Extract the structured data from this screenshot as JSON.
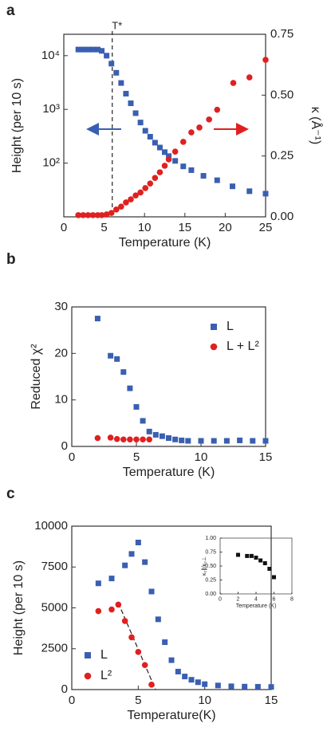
{
  "chart_data": [
    {
      "type": "scatter",
      "panel_label": "a",
      "xlabel": "Temperature (K)",
      "ylabel": "Height (per 10 s)",
      "y2label": "κ (Å⁻¹)",
      "xlim": [
        0,
        25
      ],
      "xticks": [
        0,
        5,
        10,
        15,
        20,
        25
      ],
      "ylim": [
        10,
        25000
      ],
      "ylog": true,
      "yticks": [
        {
          "value": 100,
          "label": "10²"
        },
        {
          "value": 1000,
          "label": "10³"
        },
        {
          "value": 10000,
          "label": "10⁴"
        }
      ],
      "y2lim": [
        0,
        0.75
      ],
      "y2ticks": [
        {
          "value": 0,
          "label": "0.00"
        },
        {
          "value": 0.25,
          "label": "0.25"
        },
        {
          "value": 0.5,
          "label": "0.50"
        },
        {
          "value": 0.75,
          "label": "0.75"
        }
      ],
      "annotations": [
        {
          "text": "T*",
          "x": 6
        }
      ],
      "series": [
        {
          "color": "#3a5fb0",
          "marker": "square",
          "x": [
            1.8,
            2.4,
            3.0,
            3.6,
            4.2,
            4.7,
            5.3,
            5.9,
            6.5,
            7.1,
            7.7,
            8.3,
            8.9,
            9.5,
            10.1,
            10.7,
            11.3,
            11.9,
            12.5,
            13.0,
            13.8,
            14.8,
            15.8,
            17.3,
            19.0,
            20.9,
            23.0,
            25.0
          ],
          "values": [
            13000,
            13000,
            13000,
            13000,
            13000,
            12300,
            10000,
            7100,
            4800,
            3100,
            1960,
            1300,
            850,
            570,
            400,
            310,
            240,
            195,
            160,
            135,
            110,
            87,
            74,
            58,
            48,
            37,
            30,
            27
          ]
        },
        {
          "color": "#e02020",
          "marker": "circle",
          "axis": "y2",
          "x": [
            1.8,
            2.4,
            3.0,
            3.6,
            4.2,
            4.7,
            5.3,
            5.9,
            6.5,
            7.1,
            7.7,
            8.3,
            8.9,
            9.5,
            10.1,
            10.7,
            11.3,
            11.9,
            12.5,
            13.0,
            13.8,
            14.8,
            15.8,
            16.8,
            18.0,
            19.0,
            21.0,
            23.0,
            25.0
          ],
          "values": [
            0.007,
            0.007,
            0.007,
            0.007,
            0.007,
            0.007,
            0.01,
            0.016,
            0.03,
            0.042,
            0.059,
            0.072,
            0.088,
            0.1,
            0.118,
            0.137,
            0.16,
            0.183,
            0.21,
            0.236,
            0.268,
            0.308,
            0.347,
            0.367,
            0.4,
            0.44,
            0.55,
            0.573,
            0.645
          ]
        }
      ]
    },
    {
      "type": "scatter",
      "panel_label": "b",
      "xlabel": "Temperature (K)",
      "ylabel": "Reduced χ²",
      "xlim": [
        0,
        15
      ],
      "xticks": [
        0,
        5,
        10,
        15
      ],
      "ylim": [
        0,
        30
      ],
      "yticks": [
        0,
        10,
        20,
        30
      ],
      "series": [
        {
          "name": "L",
          "color": "#3a5fb0",
          "marker": "square",
          "x": [
            2,
            3,
            3.5,
            4,
            4.5,
            5,
            5.5,
            6,
            6.5,
            7,
            7.5,
            8,
            8.5,
            9,
            10,
            11,
            12,
            13,
            14,
            15
          ],
          "values": [
            27.5,
            19.5,
            18.8,
            16,
            12.5,
            8.5,
            5.5,
            3.2,
            2.5,
            2.2,
            1.8,
            1.5,
            1.3,
            1.2,
            1.2,
            1.2,
            1.2,
            1.3,
            1.2,
            1.2
          ]
        },
        {
          "name": "L + L²",
          "color": "#e02020",
          "marker": "circle",
          "x": [
            2,
            3,
            3.5,
            4,
            4.5,
            5,
            5.5,
            6
          ],
          "values": [
            1.8,
            1.9,
            1.6,
            1.5,
            1.5,
            1.5,
            1.5,
            1.5
          ]
        }
      ]
    },
    {
      "type": "scatter",
      "panel_label": "c",
      "xlabel": "Temperature(K)",
      "ylabel": "Height (per 10 s)",
      "xlim": [
        0,
        15
      ],
      "xticks": [
        0,
        5,
        10,
        15
      ],
      "ylim": [
        0,
        10000
      ],
      "yticks": [
        0,
        2500,
        5000,
        7500,
        10000
      ],
      "fit_line": {
        "x": [
          3.5,
          6.3
        ],
        "values": [
          5300,
          0
        ]
      },
      "series": [
        {
          "name": "L",
          "color": "#3a5fb0",
          "marker": "square",
          "x": [
            2,
            3,
            4,
            4.5,
            5,
            5.5,
            6,
            6.5,
            7,
            7.5,
            8,
            8.5,
            9,
            9.5,
            10,
            11,
            12,
            13,
            14,
            15
          ],
          "values": [
            6500,
            6800,
            7600,
            8300,
            9000,
            7800,
            6000,
            4300,
            2900,
            1800,
            1100,
            800,
            600,
            450,
            330,
            250,
            200,
            180,
            170,
            160
          ]
        },
        {
          "name": "L²",
          "color": "#e02020",
          "marker": "circle",
          "x": [
            2,
            3,
            3.5,
            4,
            4.5,
            5,
            5.5,
            6
          ],
          "values": [
            4800,
            4900,
            5200,
            4200,
            3200,
            2300,
            1500,
            300
          ]
        }
      ]
    },
    {
      "type": "scatter",
      "xlabel": "Temperature (K)",
      "ylabel": "κ₂∥/κ₂⊥",
      "xlim": [
        0,
        8
      ],
      "xticks": [
        0,
        2,
        4,
        6,
        8
      ],
      "ylim": [
        0,
        1
      ],
      "yticks": [
        {
          "value": 0,
          "label": "0.00"
        },
        {
          "value": 0.25,
          "label": "0.25"
        },
        {
          "value": 0.5,
          "label": "0.50"
        },
        {
          "value": 0.75,
          "label": "0.75"
        },
        {
          "value": 1,
          "label": "1.00"
        }
      ],
      "series": [
        {
          "color": "#111111",
          "marker": "square",
          "x": [
            2,
            3,
            3.5,
            4,
            4.5,
            5,
            5.5,
            6
          ],
          "values": [
            0.7,
            0.68,
            0.68,
            0.65,
            0.6,
            0.55,
            0.45,
            0.3
          ]
        }
      ]
    }
  ]
}
